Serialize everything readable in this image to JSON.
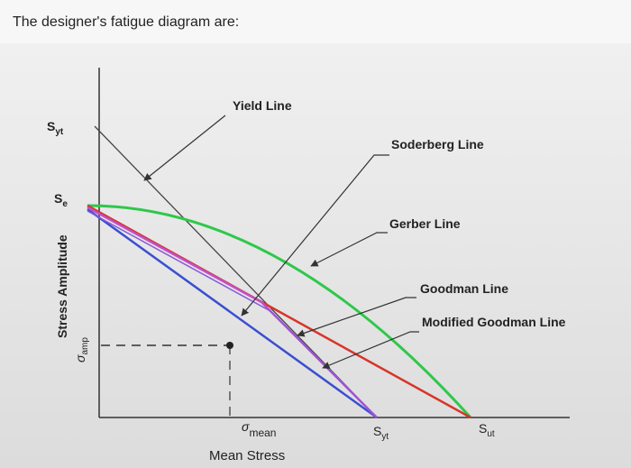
{
  "header": {
    "title": "The designer's fatigue diagram are:"
  },
  "diagram": {
    "lines": {
      "yield": "Yield Line",
      "soderberg": "Soderberg Line",
      "gerber": "Gerber Line",
      "goodman": "Goodman Line",
      "modified_goodman": "Modified Goodman Line"
    },
    "y_axis": {
      "label": "Stress Amplitude",
      "syt": {
        "symbol": "S",
        "sub": "yt"
      },
      "se": {
        "symbol": "S",
        "sub": "e"
      },
      "amp": {
        "symbol": "σ",
        "sub": "amp"
      }
    },
    "x_axis": {
      "label": "Mean Stress",
      "mean": {
        "symbol": "σ",
        "sub": "mean"
      },
      "syt": {
        "symbol": "S",
        "sub": "yt"
      },
      "sut": {
        "symbol": "S",
        "sub": "ut"
      }
    }
  }
}
